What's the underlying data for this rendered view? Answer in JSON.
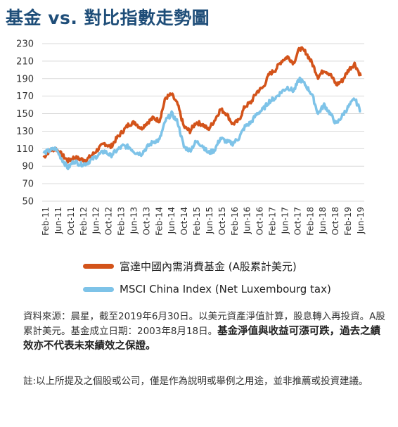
{
  "title": "基金 vs. 對比指數走勢圖",
  "chart_data": {
    "type": "line",
    "ylim": [
      50,
      230
    ],
    "yticks": [
      50,
      70,
      90,
      110,
      130,
      150,
      170,
      190,
      210,
      230
    ],
    "grid": "horizontal",
    "xtick_labels": [
      "Feb-11",
      "Jun-11",
      "Oct-11",
      "Feb-12",
      "Jun-12",
      "Oct-12",
      "Feb-13",
      "Jun-13",
      "Oct-13",
      "Feb-14",
      "Jun-14",
      "Oct-14",
      "Feb-15",
      "Jun-15",
      "Oct-15",
      "Feb-16",
      "Jun-16",
      "Oct-16",
      "Feb-17",
      "Jun-17",
      "Oct-17",
      "Feb-18",
      "Jun-18",
      "Oct-18",
      "Feb-19",
      "Jun-19"
    ],
    "series": [
      {
        "name": "富達中國內需消費基金 (A股累計美元)",
        "color": "#d3531a",
        "values": [
          100,
          108,
          110,
          103,
          96,
          100,
          98,
          97,
          103,
          110,
          116,
          112,
          122,
          130,
          138,
          140,
          133,
          140,
          145,
          142,
          168,
          172,
          160,
          135,
          130,
          140,
          138,
          132,
          142,
          155,
          150,
          138,
          142,
          158,
          163,
          175,
          180,
          195,
          200,
          210,
          215,
          208,
          225,
          220,
          208,
          192,
          200,
          195,
          183,
          188,
          200,
          207,
          193
        ]
      },
      {
        "name": "MSCI China Index (Net Luxembourg tax)",
        "color": "#7ec3e8",
        "values": [
          105,
          108,
          110,
          98,
          88,
          96,
          92,
          93,
          98,
          103,
          107,
          102,
          108,
          113,
          112,
          106,
          104,
          112,
          118,
          120,
          142,
          150,
          140,
          112,
          108,
          118,
          114,
          105,
          108,
          122,
          118,
          116,
          122,
          135,
          140,
          150,
          155,
          164,
          168,
          175,
          180,
          176,
          190,
          182,
          172,
          150,
          160,
          150,
          138,
          148,
          158,
          167,
          153
        ]
      }
    ]
  },
  "legend": {
    "fund_label": "富達中國內需消費基金 (A股累計美元)",
    "index_label": "MSCI China Index (Net Luxembourg tax)"
  },
  "notes": {
    "source_text": "資料來源：晨星，截至2019年6月30日。以美元資產淨值計算，股息轉入再投資。A股累計美元。基金成立日期：2003年8月18日。",
    "warning_text": "基金淨值與收益可漲可跌，過去之績效亦不代表未來績效之保證。",
    "disclaimer_text": "註:以上所提及之個股或公司，僅是作為說明或舉例之用途，並非推薦或投資建議。"
  }
}
